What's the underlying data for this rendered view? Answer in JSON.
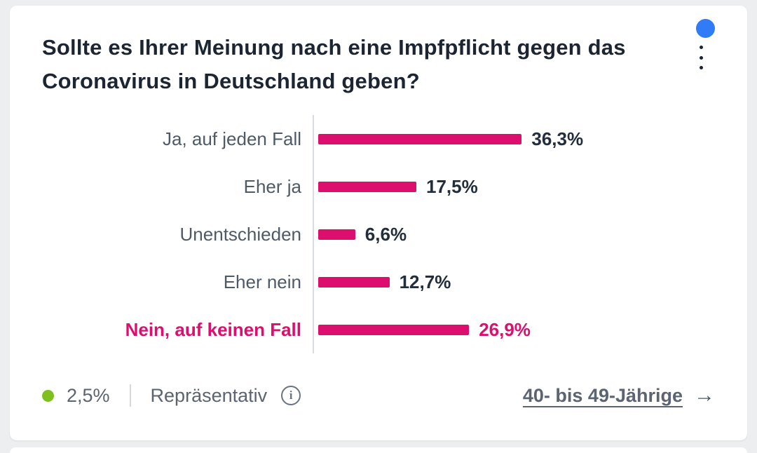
{
  "title": "Sollte es Ihrer Meinung nach eine Impfpflicht gegen das Coronavirus in Deutschland geben?",
  "chart_data": {
    "type": "bar",
    "orientation": "horizontal",
    "title": "Sollte es Ihrer Meinung nach eine Impfpflicht gegen das Coronavirus in Deutschland geben?",
    "categories": [
      "Ja, auf jeden Fall",
      "Eher ja",
      "Unentschieden",
      "Eher nein",
      "Nein, auf keinen Fall"
    ],
    "values": [
      36.3,
      17.5,
      6.6,
      12.7,
      26.9
    ],
    "value_labels": [
      "36,3%",
      "17,5%",
      "6,6%",
      "12,7%",
      "26,9%"
    ],
    "highlighted_index": 4,
    "bar_color": "#dc0f6e",
    "highlight_color": "#dc0f6e",
    "xlim": [
      0,
      40
    ],
    "grid": false,
    "legend_position": "none"
  },
  "header_icons": {
    "avatar_color": "#2f7cf6",
    "menu_icon": "kebab-menu-icon"
  },
  "footer": {
    "error_margin": "2,5%",
    "error_dot_color": "#7ec11e",
    "representative_label": "Repräsentativ",
    "info_glyph": "i",
    "audience_link": "40- bis 49-Jährige",
    "arrow_glyph": "→"
  }
}
